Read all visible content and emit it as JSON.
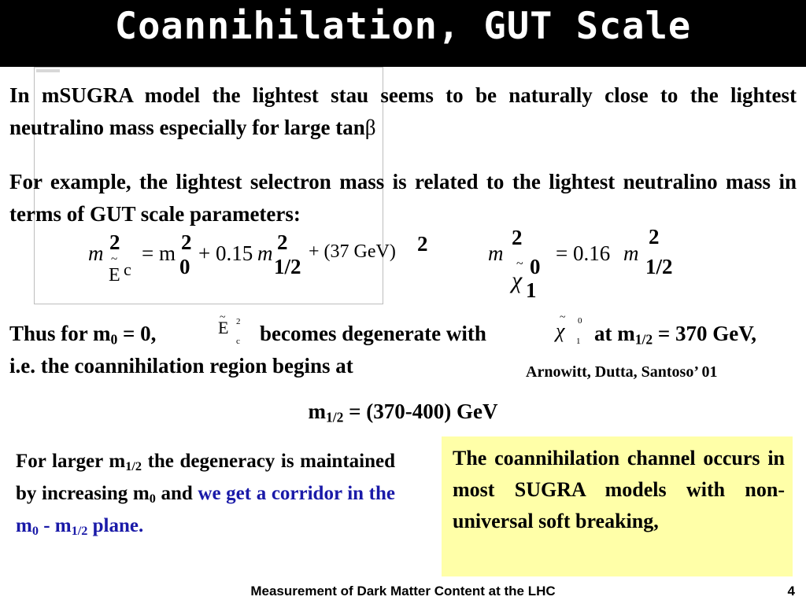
{
  "slide": {
    "title": "Coannihilation, GUT Scale",
    "para1": "In mSUGRA model the lightest stau seems to be naturally close to the lightest neutralino mass especially for large tan",
    "para1_symbol": "β",
    "para2": "For example, the lightest selectron mass is related to the  lightest neutralino mass in terms of  GUT scale parameters:",
    "eq1": {
      "m": "m",
      "exp": "2",
      "selectron": "E",
      "tilde": "~",
      "sub_c": "c",
      "equals_m": "= m",
      "exp2": "2",
      "sub0": "0",
      "plus": "+ 0.15",
      "m2": "m",
      "exp3": "2",
      "sub_half": "1/2",
      "plus2": "+ (37 GeV)",
      "exp4": "2"
    },
    "eq2": {
      "m": "m",
      "exp": "2",
      "chi": "χ",
      "tilde": "~",
      "sub1": "1",
      "sup0": "0",
      "equals": "= 0.16",
      "m2": "m",
      "exp2": "2",
      "sub_half": "1/2"
    },
    "thus_line": {
      "part1": "Thus for m",
      "sub0": "0",
      "part2": " = 0,",
      "selectron_symbol": "E",
      "selectron_sup": "2",
      "selectron_sub": "c",
      "part3": "becomes degenerate with",
      "chi_symbol": "χ",
      "chi_sup": "0",
      "chi_sub": "1",
      "part4": "at m",
      "sub_half": "1/2",
      "part5": " = 370 GeV,"
    },
    "ie_line": "i.e. the coannihilation region begins at",
    "credit": "Arnowitt, Dutta, Santoso’ 01",
    "range_line": {
      "m": "m",
      "sub_half": "1/2",
      "rest": " = (370-400) GeV"
    },
    "left_block": {
      "t1": "For larger m",
      "s1": "1/2",
      "t2": " the degeneracy is maintained by increasing m",
      "s2": "0",
      "t3": " and ",
      "blue1": "we get a corridor in the m",
      "s3": "0",
      "blue2": " - m",
      "s4": "1/2",
      "blue3": " plane."
    },
    "yellow_box": "The coannihilation channel occurs in most SUGRA models with non-universal soft breaking,",
    "footer": "Measurement of Dark Matter Content at the LHC",
    "page_number": "4",
    "colors": {
      "title_bg": "#000000",
      "title_fg": "#ffffff",
      "highlight_bg": "#ffffa8",
      "emphasis": "#1a1aa8"
    }
  }
}
